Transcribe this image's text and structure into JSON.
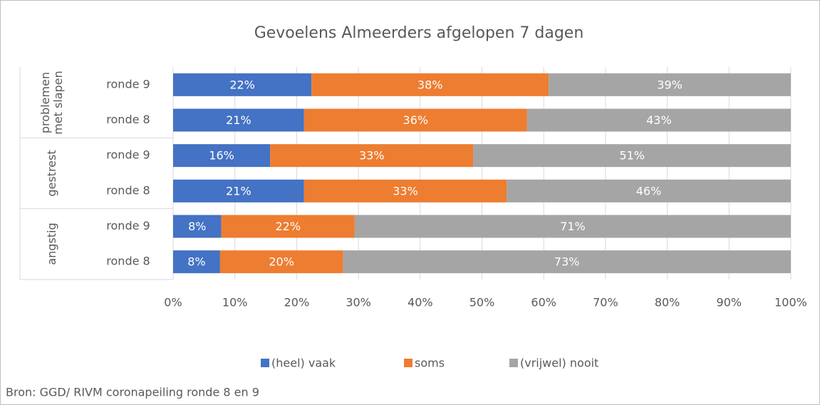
{
  "chart_data": {
    "type": "stacked-barh",
    "title": "Gevoelens Almeerders afgelopen 7 dagen",
    "category_groups": [
      {
        "label": "problemen met slapen",
        "categories": [
          "ronde 9",
          "ronde 8"
        ]
      },
      {
        "label": "gestrest",
        "categories": [
          "ronde 9",
          "ronde 8"
        ]
      },
      {
        "label": "angstig",
        "categories": [
          "ronde 9",
          "ronde 8"
        ]
      }
    ],
    "series": [
      {
        "name": "(heel) vaak",
        "color": "#4472c4",
        "values": [
          22.4,
          21.2,
          15.7,
          21.2,
          7.8,
          7.6
        ],
        "value_labels": [
          "22%",
          "21%",
          "16%",
          "21%",
          "8%",
          "8%"
        ]
      },
      {
        "name": "soms",
        "color": "#ed7d31",
        "values": [
          38.4,
          36.1,
          32.9,
          32.8,
          21.6,
          19.9
        ],
        "value_labels": [
          "38%",
          "36%",
          "33%",
          "33%",
          "22%",
          "20%"
        ]
      },
      {
        "name": "(vrijwel) nooit",
        "color": "#a5a5a5",
        "values": [
          39.2,
          42.7,
          51.4,
          46.0,
          70.6,
          72.5
        ],
        "value_labels": [
          "39%",
          "43%",
          "51%",
          "46%",
          "71%",
          "73%"
        ]
      }
    ],
    "xlim": [
      0,
      100
    ],
    "xticks": [
      {
        "value": 0,
        "label": "0%"
      },
      {
        "value": 10,
        "label": "10%"
      },
      {
        "value": 20,
        "label": "20%"
      },
      {
        "value": 30,
        "label": "30%"
      },
      {
        "value": 40,
        "label": "40%"
      },
      {
        "value": 50,
        "label": "50%"
      },
      {
        "value": 60,
        "label": "60%"
      },
      {
        "value": 70,
        "label": "70%"
      },
      {
        "value": 80,
        "label": "80%"
      },
      {
        "value": 90,
        "label": "90%"
      },
      {
        "value": 100,
        "label": "100%"
      }
    ],
    "grid": true,
    "legend": "bottom",
    "source": "Bron: GGD/ RIVM coronapeiling ronde 8 en 9"
  }
}
